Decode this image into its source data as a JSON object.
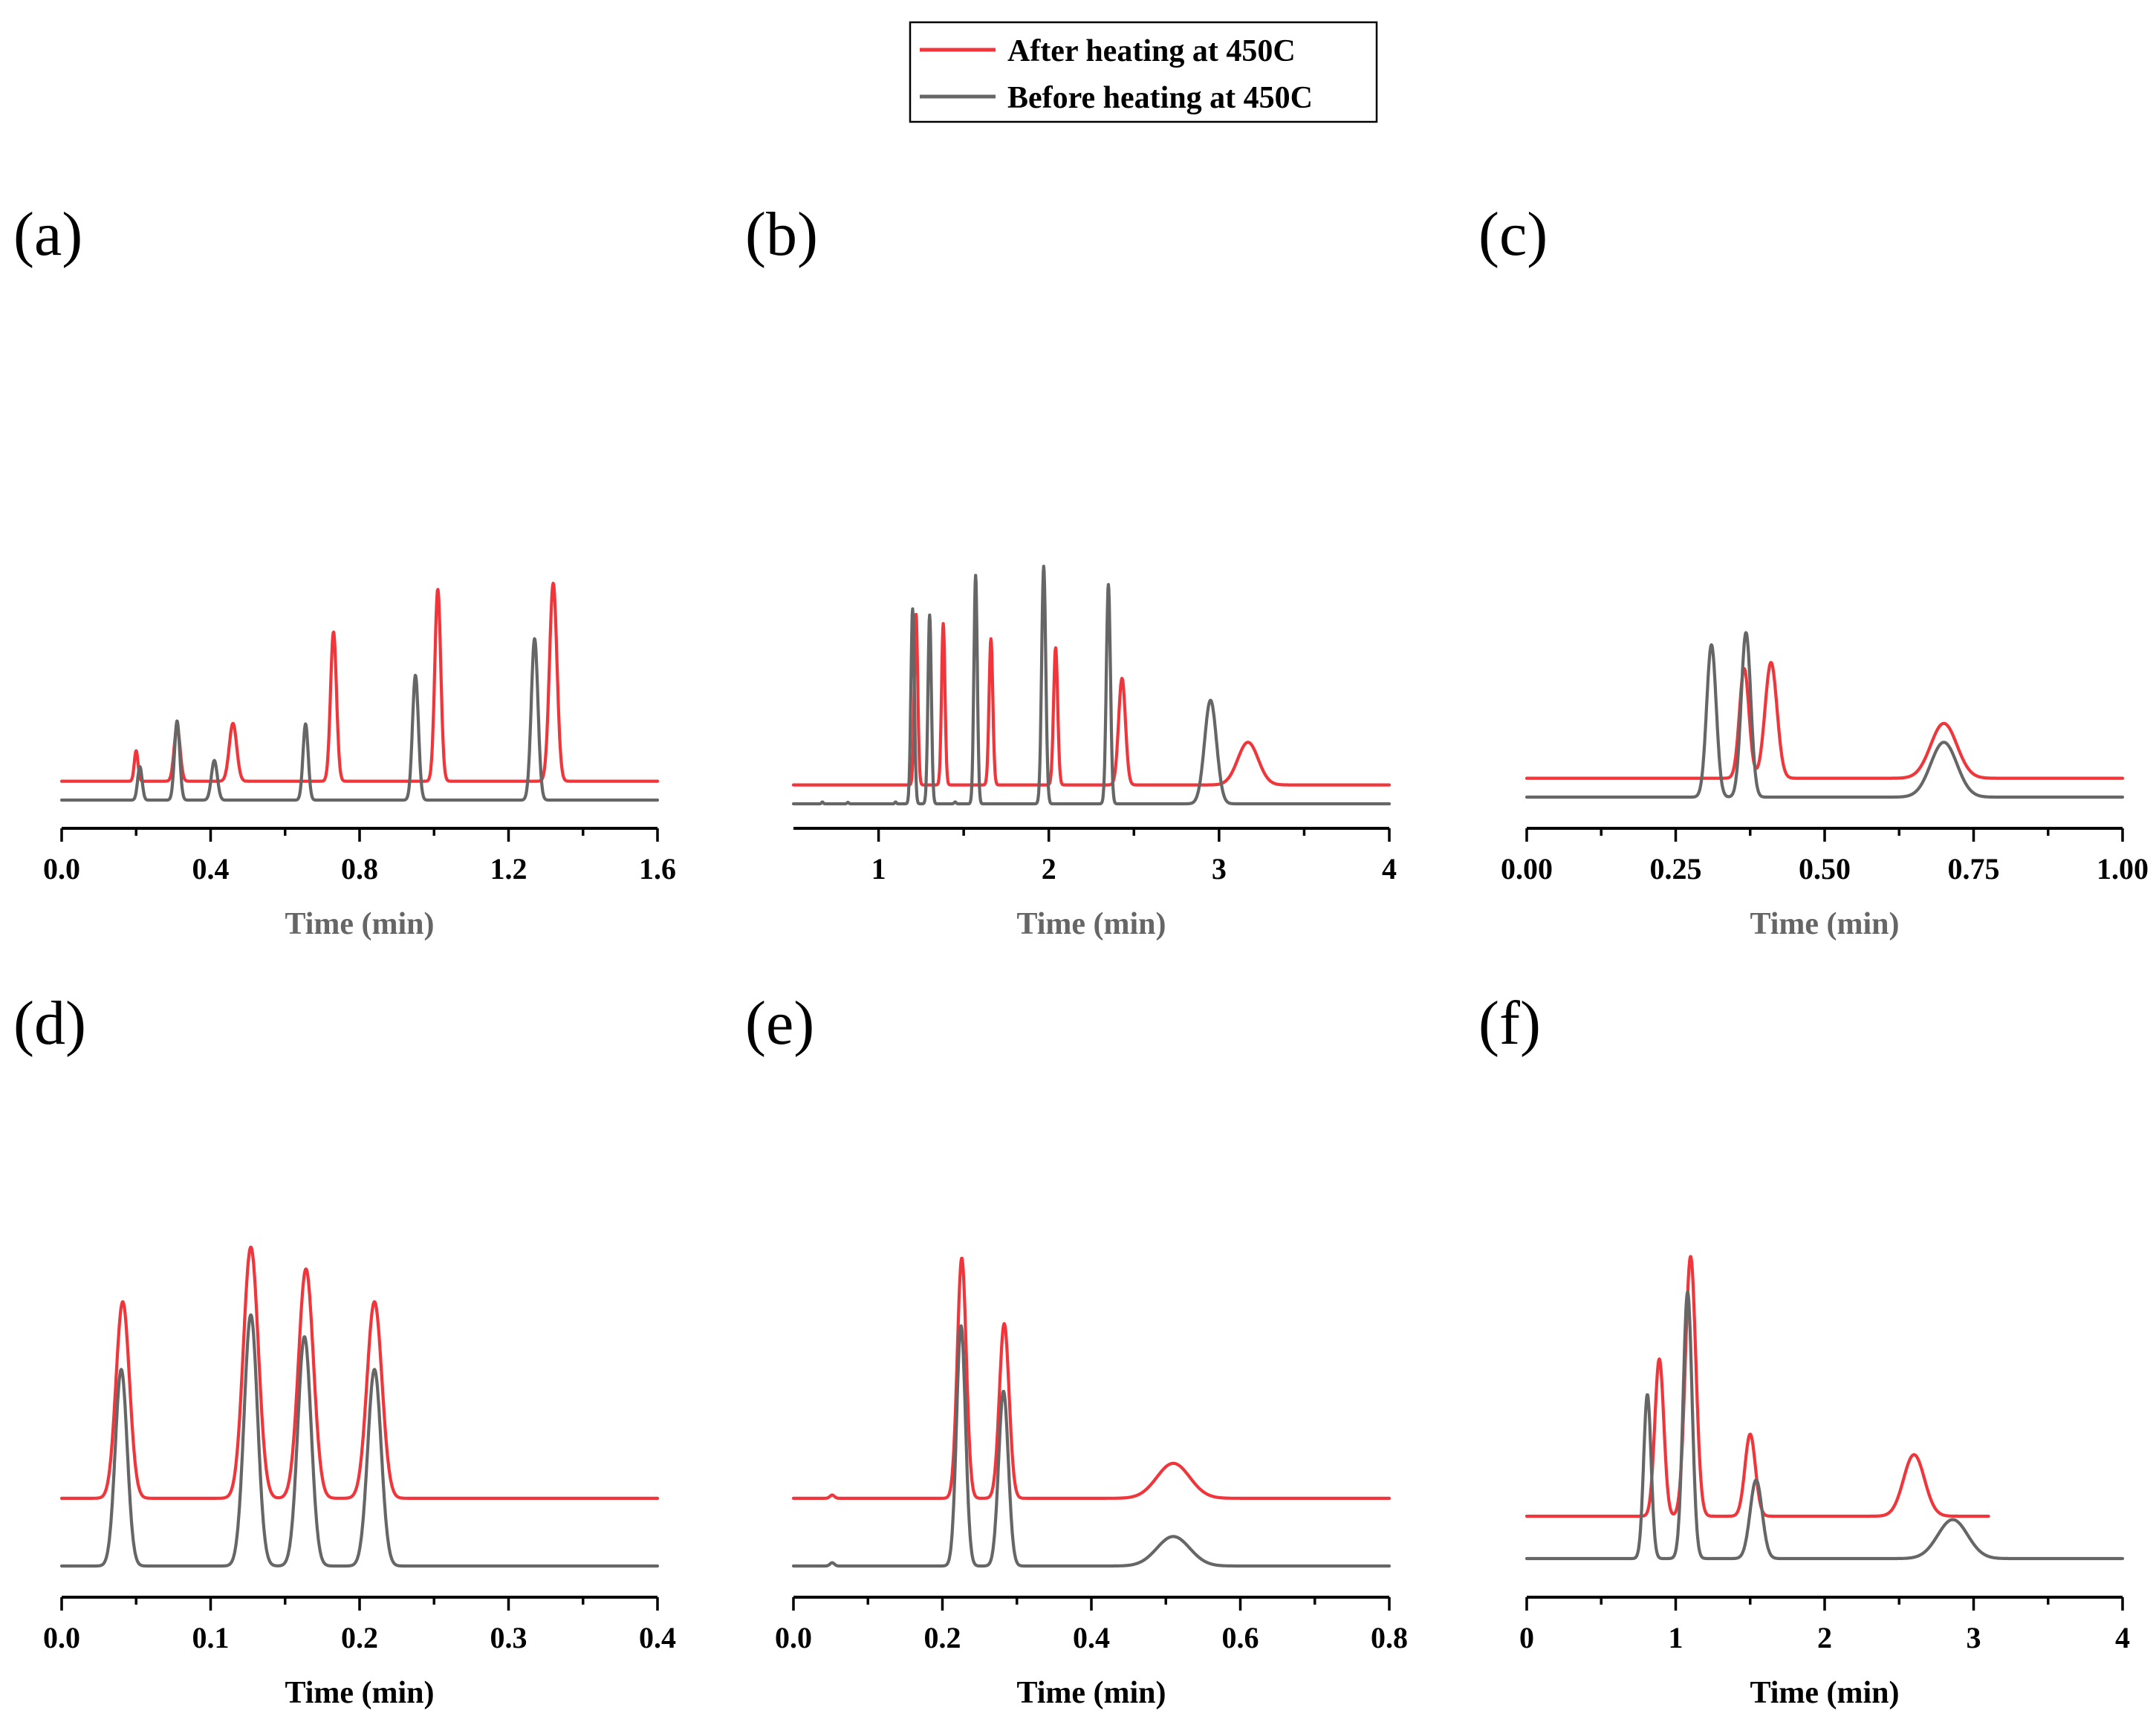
{
  "colors": {
    "after": "#f0353b",
    "before": "#666666",
    "axis": "#000000"
  },
  "legend": {
    "entries": [
      {
        "label": "After heating at 450C",
        "series": "after"
      },
      {
        "label": "Before heating at 450C",
        "series": "before"
      }
    ]
  },
  "chart_data": [
    {
      "id": "a",
      "label": "(a)",
      "type": "line",
      "xlabel": "Time (min)",
      "xlabel_color": "#666666",
      "xlim": [
        0,
        1.6
      ],
      "ticks": [
        0,
        0.4,
        0.8,
        1.2,
        1.6
      ],
      "tick_labels": [
        "0.0",
        "0.4",
        "0.8",
        "1.2",
        "1.6"
      ],
      "series": [
        {
          "name": "After heating at 450C",
          "key": "after",
          "x_range": [
            0,
            1.6
          ],
          "baseline": 0.62,
          "peaks": [
            [
              0.2,
              1.0,
              0.005
            ],
            [
              0.31,
              1.8,
              0.008
            ],
            [
              0.46,
              1.9,
              0.01
            ],
            [
              0.73,
              4.9,
              0.008
            ],
            [
              1.01,
              6.3,
              0.008
            ],
            [
              1.32,
              6.5,
              0.01
            ]
          ]
        },
        {
          "name": "Before heating at 450C",
          "key": "before",
          "x_range": [
            0,
            1.6
          ],
          "baseline": 0,
          "peaks": [
            [
              0.21,
              1.1,
              0.006
            ],
            [
              0.31,
              2.6,
              0.007
            ],
            [
              0.41,
              1.3,
              0.008
            ],
            [
              0.655,
              2.5,
              0.007
            ],
            [
              0.95,
              4.1,
              0.008
            ],
            [
              1.27,
              5.3,
              0.009
            ]
          ]
        }
      ]
    },
    {
      "id": "b",
      "label": "(b)",
      "type": "line",
      "xlabel": "Time (min)",
      "xlabel_color": "#666666",
      "xlim": [
        0.5,
        4
      ],
      "ticks": [
        1,
        2,
        3,
        4
      ],
      "tick_labels": [
        "1",
        "2",
        "3",
        "4"
      ],
      "series": [
        {
          "name": "After heating at 450C",
          "key": "after",
          "x_range": [
            0.5,
            4
          ],
          "baseline": 0.62,
          "peaks": [
            [
              1.22,
              5.6,
              0.01
            ],
            [
              1.38,
              5.3,
              0.01
            ],
            [
              1.66,
              4.8,
              0.011
            ],
            [
              2.04,
              4.5,
              0.012
            ],
            [
              2.43,
              3.5,
              0.02
            ],
            [
              3.17,
              1.4,
              0.06
            ]
          ]
        },
        {
          "name": "Before heating at 450C",
          "key": "before",
          "x_range": [
            0.5,
            4
          ],
          "baseline": 0,
          "peaks": [
            [
              0.67,
              0.06,
              0.005
            ],
            [
              0.82,
              0.05,
              0.005
            ],
            [
              1.1,
              0.06,
              0.005
            ],
            [
              1.2,
              6.4,
              0.01
            ],
            [
              1.3,
              6.2,
              0.01
            ],
            [
              1.45,
              0.06,
              0.006
            ],
            [
              1.57,
              7.5,
              0.01
            ],
            [
              1.97,
              7.8,
              0.012
            ],
            [
              2.35,
              7.2,
              0.012
            ],
            [
              2.95,
              3.4,
              0.035
            ]
          ]
        }
      ]
    },
    {
      "id": "c",
      "label": "(c)",
      "type": "line",
      "xlabel": "Time (min)",
      "xlabel_color": "#666666",
      "xlim": [
        0,
        1.0
      ],
      "ticks": [
        0,
        0.25,
        0.5,
        0.75,
        1.0
      ],
      "tick_labels": [
        "0.00",
        "0.25",
        "0.50",
        "0.75",
        "1.00"
      ],
      "series": [
        {
          "name": "After heating at 450C",
          "key": "after",
          "x_range": [
            0,
            1.0
          ],
          "baseline": 0.62,
          "peaks": [
            [
              0.365,
              3.6,
              0.008
            ],
            [
              0.41,
              3.8,
              0.01
            ],
            [
              0.7,
              1.8,
              0.022
            ]
          ]
        },
        {
          "name": "Before heating at 450C",
          "key": "before",
          "x_range": [
            0,
            1.0
          ],
          "baseline": 0,
          "peaks": [
            [
              0.31,
              5.0,
              0.008
            ],
            [
              0.368,
              5.4,
              0.008
            ],
            [
              0.7,
              1.8,
              0.022
            ]
          ]
        }
      ]
    },
    {
      "id": "d",
      "label": "(d)",
      "type": "line",
      "xlabel": "Time (min)",
      "xlabel_color": "#000000",
      "xlim": [
        0,
        0.4
      ],
      "ticks": [
        0,
        0.1,
        0.2,
        0.3,
        0.4
      ],
      "tick_labels": [
        "0.0",
        "0.1",
        "0.2",
        "0.3",
        "0.4"
      ],
      "series": [
        {
          "name": "After heating at 450C",
          "key": "after",
          "x_range": [
            0,
            0.4
          ],
          "baseline": 0.62,
          "peaks": [
            [
              0.041,
              1.8,
              0.0045
            ],
            [
              0.127,
              2.3,
              0.005
            ],
            [
              0.164,
              2.1,
              0.005
            ],
            [
              0.21,
              1.8,
              0.005
            ]
          ]
        },
        {
          "name": "Before heating at 450C",
          "key": "before",
          "x_range": [
            0,
            0.4
          ],
          "baseline": 0,
          "peaks": [
            [
              0.04,
              1.8,
              0.004
            ],
            [
              0.127,
              2.3,
              0.0045
            ],
            [
              0.163,
              2.1,
              0.0045
            ],
            [
              0.21,
              1.8,
              0.0045
            ]
          ]
        }
      ]
    },
    {
      "id": "e",
      "label": "(e)",
      "type": "line",
      "xlabel": "Time (min)",
      "xlabel_color": "#000000",
      "xlim": [
        0,
        0.8
      ],
      "ticks": [
        0,
        0.2,
        0.4,
        0.6,
        0.8
      ],
      "tick_labels": [
        "0.0",
        "0.2",
        "0.4",
        "0.6",
        "0.8"
      ],
      "series": [
        {
          "name": "After heating at 450C",
          "key": "after",
          "x_range": [
            0,
            0.8
          ],
          "baseline": 0.62,
          "peaks": [
            [
              0.052,
              0.03,
              0.003
            ],
            [
              0.226,
              2.2,
              0.006
            ],
            [
              0.283,
              1.6,
              0.0065
            ],
            [
              0.51,
              0.32,
              0.022
            ]
          ]
        },
        {
          "name": "Before heating at 450C",
          "key": "before",
          "x_range": [
            0,
            0.8
          ],
          "baseline": 0,
          "peaks": [
            [
              0.052,
              0.03,
              0.003
            ],
            [
              0.225,
              2.2,
              0.006
            ],
            [
              0.282,
              1.6,
              0.0065
            ],
            [
              0.51,
              0.27,
              0.022
            ]
          ]
        }
      ]
    },
    {
      "id": "f",
      "label": "(f)",
      "type": "line",
      "xlabel": "Time (min)",
      "xlabel_color": "#000000",
      "xlim": [
        0,
        4
      ],
      "ticks": [
        0,
        1,
        2,
        3,
        4
      ],
      "tick_labels": [
        "0",
        "1",
        "2",
        "3",
        "4"
      ],
      "series": [
        {
          "name": "After heating at 450C",
          "key": "after",
          "x_range": [
            0,
            3.1
          ],
          "baseline": 0.62,
          "peaks": [
            [
              0.89,
              2.3,
              0.03
            ],
            [
              1.1,
              3.8,
              0.035
            ],
            [
              1.5,
              1.2,
              0.035
            ],
            [
              2.6,
              0.9,
              0.07
            ]
          ]
        },
        {
          "name": "Before heating at 450C",
          "key": "before",
          "x_range": [
            0,
            4
          ],
          "baseline": 0,
          "peaks": [
            [
              0.81,
              2.4,
              0.025
            ],
            [
              1.08,
              3.9,
              0.03
            ],
            [
              1.54,
              1.15,
              0.04
            ],
            [
              2.86,
              0.57,
              0.1
            ]
          ]
        }
      ]
    }
  ]
}
